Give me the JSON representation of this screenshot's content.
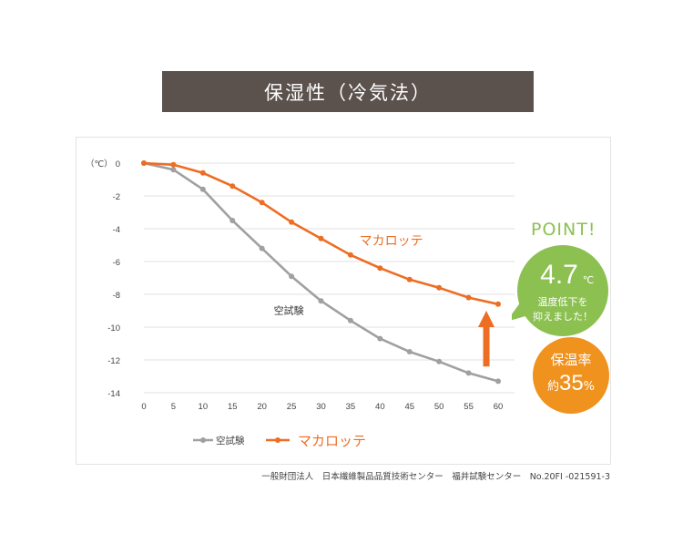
{
  "header": {
    "title": "保湿性（冷気法）"
  },
  "footnote": "一般財団法人　日本繊維製品品質技術センター　福井試験センター　No.20FI -021591-3",
  "callouts": {
    "point": "POINT!",
    "temp_value": "4.7",
    "temp_unit": "℃",
    "temp_line1": "温度低下を",
    "temp_line2": "抑えました！",
    "retention_label": "保温率",
    "retention_prefix": "約",
    "retention_value": "35",
    "retention_unit": "%"
  },
  "colors": {
    "series_gray": "#a0a0a0",
    "series_orange": "#ed6d23",
    "callout_green": "#8cc152",
    "callout_orange": "#f0921e",
    "title_bg": "#5b514d"
  },
  "chart_data": {
    "type": "line",
    "title": "",
    "ylabel": "（℃）",
    "xlabel": "",
    "ylim": [
      -14,
      0
    ],
    "xlim": [
      0,
      60
    ],
    "x": [
      0,
      5,
      10,
      15,
      20,
      25,
      30,
      35,
      40,
      45,
      50,
      55,
      60
    ],
    "x_ticks": [
      "0",
      "5",
      "10",
      "15",
      "20",
      "25",
      "30",
      "35",
      "40",
      "45",
      "50",
      "55",
      "60"
    ],
    "y_ticks": [
      "0",
      "-2",
      "-4",
      "-6",
      "-8",
      "-10",
      "-12",
      "-14"
    ],
    "grid": true,
    "legend_position": "bottom-left",
    "series": [
      {
        "name": "空試験",
        "values": [
          0,
          -0.4,
          -1.6,
          -3.5,
          -5.2,
          -6.9,
          -8.4,
          -9.6,
          -10.7,
          -11.5,
          -12.1,
          -12.8,
          -13.3
        ]
      },
      {
        "name": "マカロッテ",
        "values": [
          0,
          -0.1,
          -0.6,
          -1.4,
          -2.4,
          -3.6,
          -4.6,
          -5.6,
          -6.4,
          -7.1,
          -7.6,
          -8.2,
          -8.6
        ]
      }
    ],
    "annotations": [
      {
        "text": "マカロッテ",
        "series": "マカロッテ"
      },
      {
        "text": "空試験",
        "series": "空試験"
      }
    ],
    "legend": [
      "空試験",
      "マカロッテ"
    ]
  }
}
